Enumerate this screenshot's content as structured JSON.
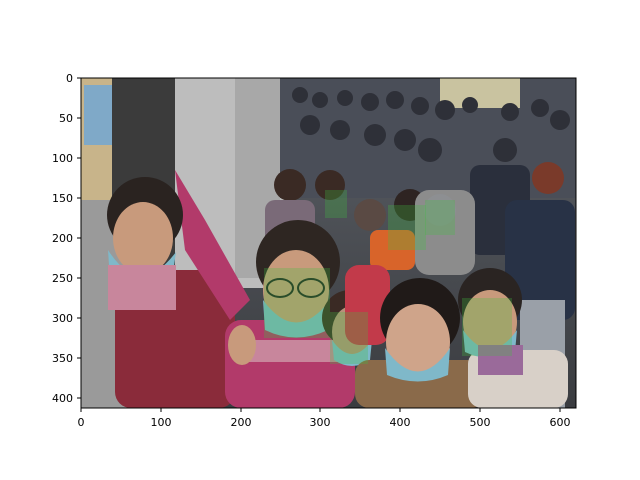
{
  "figure": {
    "x_ticks": [
      "0",
      "100",
      "200",
      "300",
      "400",
      "500",
      "600"
    ],
    "y_ticks": [
      "0",
      "50",
      "100",
      "150",
      "200",
      "250",
      "300",
      "350",
      "400"
    ]
  },
  "image": {
    "subject": "crowd of people wearing surgical face masks queuing on a city street",
    "highlighted_faces": 6,
    "colors": {
      "highlight": "#3fbf3f",
      "mask": "#7fb8c9",
      "coat_red": "#8a2b3a",
      "coat_magenta": "#b23a6a"
    }
  }
}
